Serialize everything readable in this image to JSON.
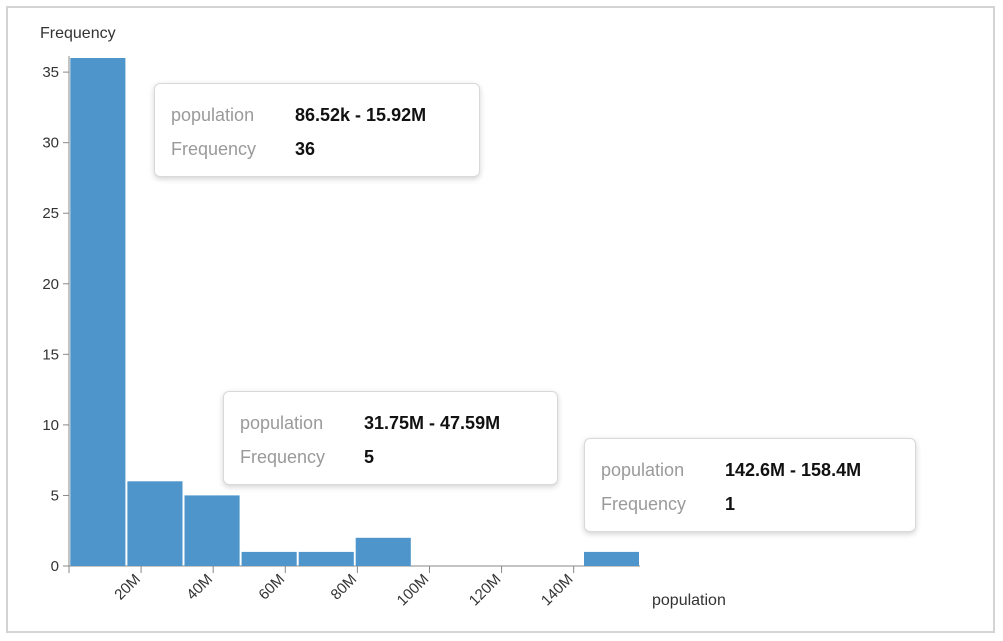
{
  "chart_data": {
    "type": "bar",
    "subtype": "histogram",
    "xlabel": "population",
    "ylabel": "Frequency",
    "xlim": [
      0,
      158400000
    ],
    "ylim": [
      0,
      36
    ],
    "y_ticks": [
      0,
      5,
      10,
      15,
      20,
      25,
      30,
      35
    ],
    "x_ticks": [
      {
        "value": 20000000,
        "label": "20M"
      },
      {
        "value": 40000000,
        "label": "40M"
      },
      {
        "value": 60000000,
        "label": "60M"
      },
      {
        "value": 80000000,
        "label": "80M"
      },
      {
        "value": 100000000,
        "label": "100M"
      },
      {
        "value": 120000000,
        "label": "120M"
      },
      {
        "value": 140000000,
        "label": "140M"
      }
    ],
    "bins": [
      {
        "x0": 86520,
        "x1": 15920000,
        "count": 36
      },
      {
        "x0": 15920000,
        "x1": 31750000,
        "count": 6
      },
      {
        "x0": 31750000,
        "x1": 47590000,
        "count": 5
      },
      {
        "x0": 47590000,
        "x1": 63430000,
        "count": 1
      },
      {
        "x0": 63430000,
        "x1": 79260000,
        "count": 1
      },
      {
        "x0": 79260000,
        "x1": 95100000,
        "count": 2
      },
      {
        "x0": 95100000,
        "x1": 110900000,
        "count": 0
      },
      {
        "x0": 110900000,
        "x1": 126800000,
        "count": 0
      },
      {
        "x0": 126800000,
        "x1": 142600000,
        "count": 0
      },
      {
        "x0": 142600000,
        "x1": 158400000,
        "count": 1
      }
    ],
    "bar_color": "#4e95cb",
    "grid": false
  },
  "tooltips": [
    {
      "key_label": "population",
      "range": "86.52k - 15.92M",
      "freq_label": "Frequency",
      "count": "36"
    },
    {
      "key_label": "population",
      "range": "31.75M - 47.59M",
      "freq_label": "Frequency",
      "count": "5"
    },
    {
      "key_label": "population",
      "range": "142.6M - 158.4M",
      "freq_label": "Frequency",
      "count": "1"
    }
  ]
}
